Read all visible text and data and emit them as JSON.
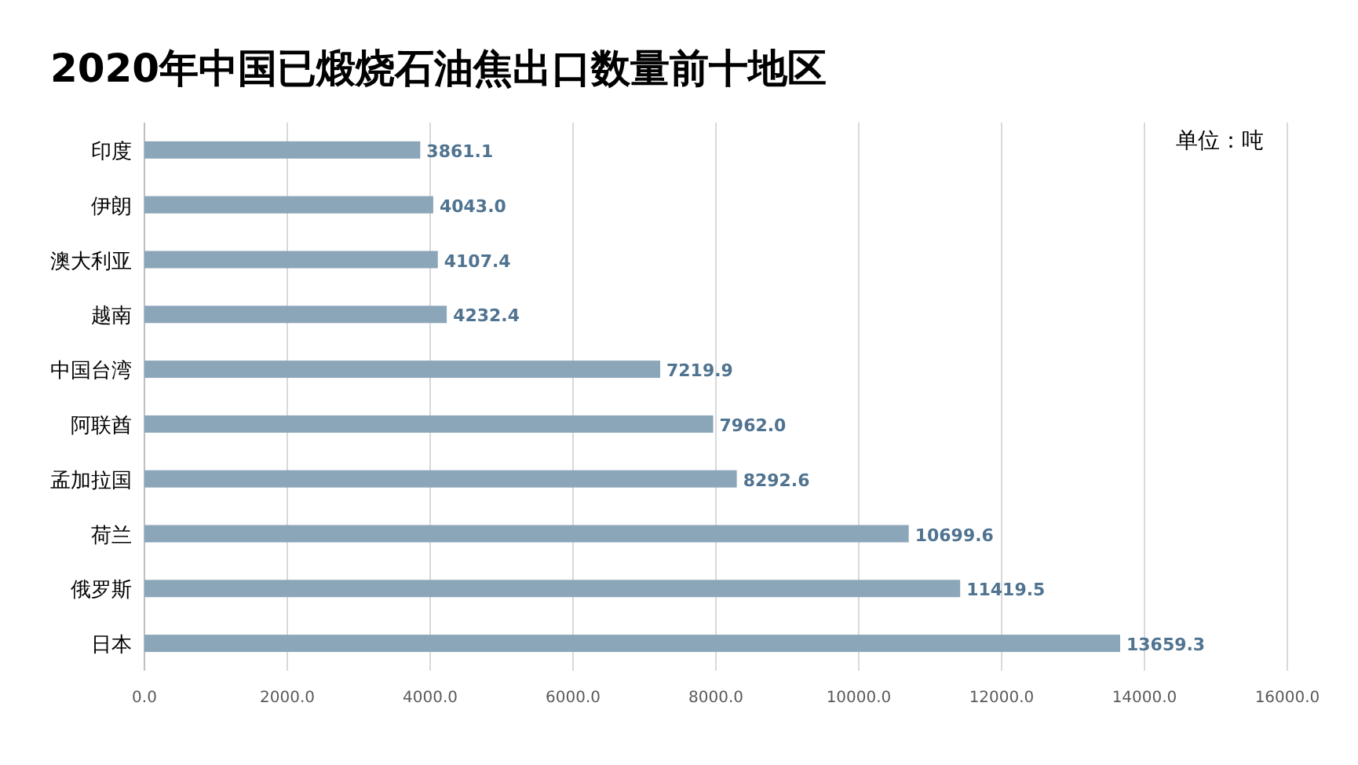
{
  "chart_data": {
    "type": "bar",
    "orientation": "horizontal",
    "title": "2020年中国已煅烧石油焦出口数量前十地区",
    "categories": [
      "印度",
      "伊朗",
      "澳大利亚",
      "越南",
      "中国台湾",
      "阿联酋",
      "孟加拉国",
      "荷兰",
      "俄罗斯",
      "日本"
    ],
    "values": [
      3861.1,
      4043.0,
      4107.4,
      4232.4,
      7219.9,
      7962.0,
      8292.6,
      10699.6,
      11419.5,
      13659.3
    ],
    "value_labels": [
      "3861.1",
      "4043.0",
      "4107.4",
      "4232.4",
      "7219.9",
      "7962.0",
      "8292.6",
      "10699.6",
      "11419.5",
      "13659.3"
    ],
    "color": "#8ba6b9",
    "grid": "x",
    "xlim": [
      0,
      16000
    ],
    "xticks": [
      {
        "value": 0,
        "label": "0.0"
      },
      {
        "value": 2000,
        "label": "2000.0"
      },
      {
        "value": 4000,
        "label": "4000.0"
      },
      {
        "value": 6000,
        "label": "6000.0"
      },
      {
        "value": 8000,
        "label": "8000.0"
      },
      {
        "value": 10000,
        "label": "10000.0"
      },
      {
        "value": 12000,
        "label": "12000.0"
      },
      {
        "value": 14000,
        "label": "14000.0"
      },
      {
        "value": 16000,
        "label": "16000.0"
      }
    ],
    "annotations": [
      "单位：吨"
    ]
  }
}
